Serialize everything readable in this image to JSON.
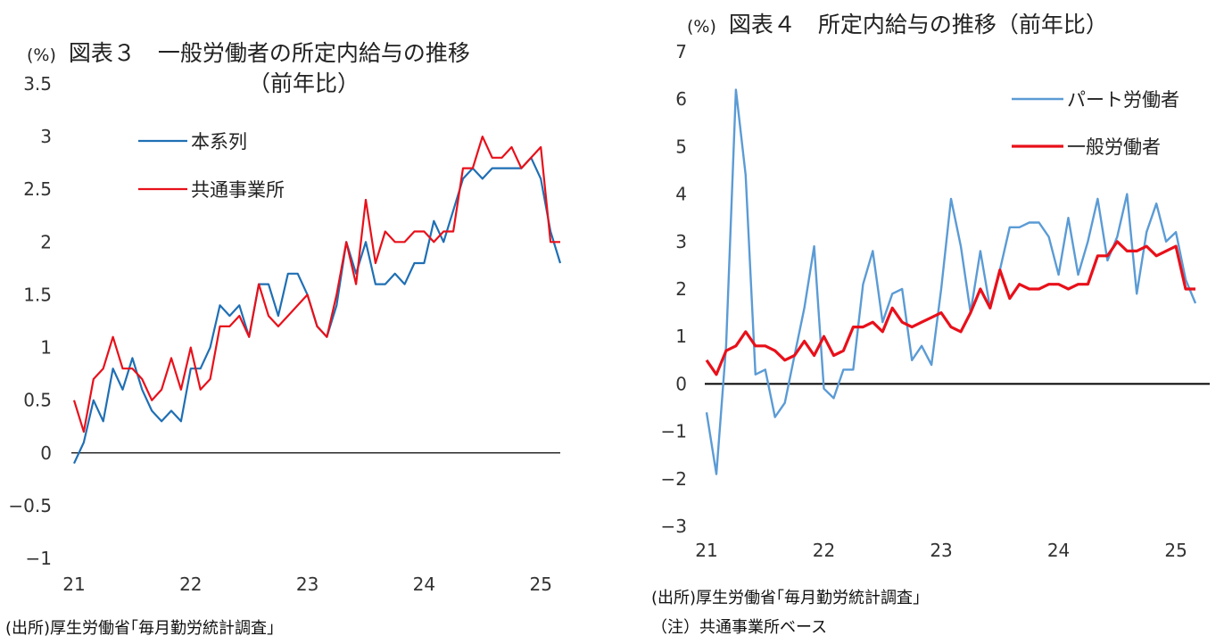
{
  "charts": [
    {
      "unit": "(%)",
      "title": "図表３　一般労働者の所定内給与の推移",
      "subtitle": "（前年比）",
      "source": "(出所)厚生労働省｢毎月勤労統計調査｣",
      "note": ""
    },
    {
      "unit": "(%)",
      "title": "図表４　所定内給与の推移（前年比）",
      "subtitle": "",
      "source": "(出所)厚生労働省｢毎月勤労統計調査｣",
      "note": "（注）共通事業所ベース"
    }
  ],
  "chart_data": [
    {
      "type": "line",
      "title": "図表３　一般労働者の所定内給与の推移（前年比）",
      "ylabel": "(%)",
      "x_tick_labels": [
        "21",
        "22",
        "23",
        "24",
        "25"
      ],
      "x_start": "2021-01",
      "x_end": "2025-03",
      "ylim": [
        -1,
        3.5
      ],
      "y_ticks": [
        -1,
        -0.5,
        0,
        0.5,
        1,
        1.5,
        2,
        2.5,
        3,
        3.5
      ],
      "y_tick_labels": [
        "−1",
        "−0.5",
        "0",
        "0.5",
        "1",
        "1.5",
        "2",
        "2.5",
        "3",
        "3.5"
      ],
      "legend_position": "upper-left",
      "series": [
        {
          "name": "本系列",
          "color": "#1F6FB4",
          "values": [
            -0.1,
            0.1,
            0.5,
            0.3,
            0.8,
            0.6,
            0.9,
            0.6,
            0.4,
            0.3,
            0.4,
            0.3,
            0.8,
            0.8,
            1.0,
            1.4,
            1.3,
            1.4,
            1.1,
            1.6,
            1.6,
            1.3,
            1.7,
            1.7,
            1.5,
            1.2,
            1.1,
            1.4,
            2.0,
            1.7,
            2.0,
            1.6,
            1.6,
            1.7,
            1.6,
            1.8,
            1.8,
            2.2,
            2.0,
            2.3,
            2.6,
            2.7,
            2.6,
            2.7,
            2.7,
            2.7,
            2.7,
            2.8,
            2.6,
            2.1,
            1.8
          ]
        },
        {
          "name": "共通事業所",
          "color": "#E8101A",
          "values": [
            0.5,
            0.2,
            0.7,
            0.8,
            1.1,
            0.8,
            0.8,
            0.7,
            0.5,
            0.6,
            0.9,
            0.6,
            1.0,
            0.6,
            0.7,
            1.2,
            1.2,
            1.3,
            1.1,
            1.6,
            1.3,
            1.2,
            1.3,
            1.4,
            1.5,
            1.2,
            1.1,
            1.5,
            2.0,
            1.6,
            2.4,
            1.8,
            2.1,
            2.0,
            2.0,
            2.1,
            2.1,
            2.0,
            2.1,
            2.1,
            2.7,
            2.7,
            3.0,
            2.8,
            2.8,
            2.9,
            2.7,
            2.8,
            2.9,
            2.0,
            2.0
          ]
        }
      ]
    },
    {
      "type": "line",
      "title": "図表４　所定内給与の推移（前年比）",
      "ylabel": "(%)",
      "x_tick_labels": [
        "21",
        "22",
        "23",
        "24",
        "25"
      ],
      "x_start": "2021-01",
      "x_end": "2025-03",
      "ylim": [
        -3,
        7
      ],
      "y_ticks": [
        -3,
        -2,
        -1,
        0,
        1,
        2,
        3,
        4,
        5,
        6,
        7
      ],
      "y_tick_labels": [
        "−3",
        "−2",
        "−1",
        "0",
        "1",
        "2",
        "3",
        "4",
        "5",
        "6",
        "7"
      ],
      "legend_position": "upper-right",
      "series": [
        {
          "name": "パート労働者",
          "color": "#5B9BD5",
          "values": [
            -0.6,
            -1.9,
            0.8,
            6.2,
            4.4,
            0.2,
            0.3,
            -0.7,
            -0.4,
            0.6,
            1.6,
            2.9,
            -0.1,
            -0.3,
            0.3,
            0.3,
            2.1,
            2.8,
            1.3,
            1.9,
            2.0,
            0.5,
            0.8,
            0.4,
            2.0,
            3.9,
            2.9,
            1.5,
            2.8,
            1.6,
            2.4,
            3.3,
            3.3,
            3.4,
            3.4,
            3.1,
            2.3,
            3.5,
            2.3,
            3.0,
            3.9,
            2.6,
            3.1,
            4.0,
            1.9,
            3.2,
            3.8,
            3.0,
            3.2,
            2.2,
            1.7
          ]
        },
        {
          "name": "一般労働者",
          "color": "#E8101A",
          "values": [
            0.5,
            0.2,
            0.7,
            0.8,
            1.1,
            0.8,
            0.8,
            0.7,
            0.5,
            0.6,
            0.9,
            0.6,
            1.0,
            0.6,
            0.7,
            1.2,
            1.2,
            1.3,
            1.1,
            1.6,
            1.3,
            1.2,
            1.3,
            1.4,
            1.5,
            1.2,
            1.1,
            1.5,
            2.0,
            1.6,
            2.4,
            1.8,
            2.1,
            2.0,
            2.0,
            2.1,
            2.1,
            2.0,
            2.1,
            2.1,
            2.7,
            2.7,
            3.0,
            2.8,
            2.8,
            2.9,
            2.7,
            2.8,
            2.9,
            2.0,
            2.0
          ]
        }
      ]
    }
  ]
}
